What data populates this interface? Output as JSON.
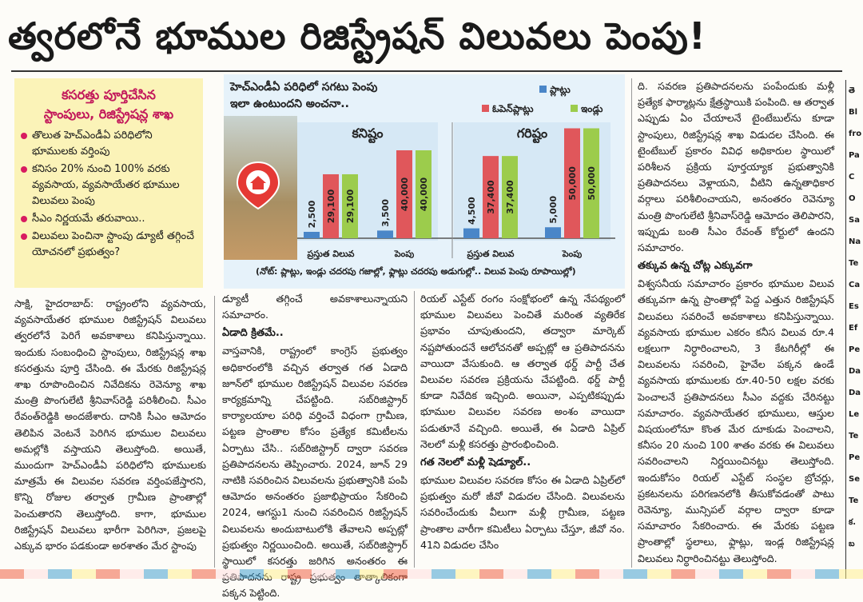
{
  "headline": "త్వరలోనే భూముల రిజిస్ట్రేషన్ విలువలు పెంపు!",
  "highlight": {
    "title1": "కసరత్తు పూర్తిచేసిన",
    "title2": "స్టాంపులు, రిజిస్ట్రేషన్ల శాఖ",
    "points": [
      "తొలుత హెచ్ఎండీఏ పరిధిలోని భూములకు వర్తింపు",
      "కనిసం 20% నుంచి 100% వరకు వ్యవసాయ, వ్యవసాయేతర భూముల విలువలు పెంపు",
      "సీఎం నిర్ణయమే తరువాయి..",
      "విలువలు పెంచినా స్టాంపు డ్యూటీ తగ్గించే యోచనలో ప్రభుత్వం?"
    ]
  },
  "chart_data": {
    "type": "bar",
    "title": "హెచ్ఎండీఏ పరిధిలో సగటు పెంపు ఇలా ఉంటుందని అంచనా..",
    "title_line1": "హెచ్ఎండీఏ పరిధిలో సగటు పెంపు",
    "title_line2": "ఇలా ఉంటుందని అంచనా..",
    "legend": [
      "ప్లాట్లు",
      "ఓపెన్‌ప్లాట్లు",
      "ఇండ్లు"
    ],
    "legend_placement": "top-right",
    "groups": [
      {
        "name": "కనిష్టం",
        "categories": [
          "ప్రస్తుత విలువ",
          "పెంపు"
        ]
      },
      {
        "name": "గరిష్టం",
        "categories": [
          "ప్రస్తుత విలువ",
          "పెంపు"
        ]
      }
    ],
    "categories": [
      "ప్రస్తుత విలువ",
      "పెంపు",
      "ప్రస్తుత విలువ",
      "పెంపు"
    ],
    "series": [
      {
        "name": "ప్లాట్లు",
        "values": [
          2500,
          3500,
          4500,
          5000
        ],
        "labels": [
          "2,500",
          "3,500",
          "4,500",
          "5,000"
        ],
        "color": "#4a86c8"
      },
      {
        "name": "ఓపెన్‌ప్లాట్లు",
        "values": [
          29100,
          40000,
          37400,
          50000
        ],
        "labels": [
          "29,100",
          "40,000",
          "37,400",
          "50,000"
        ],
        "color": "#e0575b"
      },
      {
        "name": "ఇండ్లు",
        "values": [
          29100,
          40000,
          37400,
          50000
        ],
        "labels": [
          "29,100",
          "40,000",
          "37,400",
          "50,000"
        ],
        "color": "#9ccc4c"
      }
    ],
    "ylim": [
      0,
      52000
    ],
    "note": "(నోట్: ప్లాట్లు, ఇండ్లు చదరపు గజాల్లో, ఫ్లాట్లు చదరపు అడుగుల్లో.. విలువ పెంపు రూపాయిల్లో)"
  },
  "columns": {
    "c1": "సాక్షి, హైదరాబాద్: రాష్ట్రంలోని వ్యవసాయ, వ్యవసాయేతర భూముల రిజిస్ట్రేషన్ విలువలు త్వరలోనే పెరిగే అవకాశాలు కనిపిస్తున్నాయి. ఇందుకు సంబంధించి స్టాంపులు, రిజిస్ట్రేషన్ల శాఖ కసరత్తును పూర్తి చేసింది. ఈ మేరకు రిజిస్ట్రేషన్ల శాఖ రూపొందించిన నివేదికను రెవెన్యూ శాఖ మంత్రి పొంగులేటి శ్రీనివాస్‌రెడ్డి పరిశీలించి. సీఎం రేవంత్‌రెడ్డికి అందజేశారు. దానికి సీఎం ఆమోదం తెలిపిన వెంటనే పెరిగిన భూముల విలువలు అమల్లోకి వస్తాయని తెలుస్తోంది. అయితే, ముందుగా హెచ్ఎండీఏ పరిధిలోని భూములకు మాత్రమే ఈ విలువల సవరణ వర్తింపజేస్తారని, కొన్ని రోజుల తర్వాత గ్రామీణ ప్రాంతాల్లో పెంచుతారని తెలుస్తోంది. కాగా, భూముల రిజిస్ట్రేషన్ విలువలు భారీగా పెరిగినా, ప్రజలపై ఎక్కువ భారం పడకుండా అరశాతం మేర స్టాంపు",
    "c2_a": "డ్యూటీ తగ్గించే అవకాశాలున్నాయని సమాచారం.",
    "c2_head": "ఏడాది క్రితమే..",
    "c2_b": "వాస్తవానికి, రాష్ట్రంలో కాంగ్రెస్ ప్రభుత్వం అధికారంలోకి వచ్చిన తర్వాత గత ఏడాది జూన్‌లో భూముల రిజిస్ట్రేషన్ విలువల సవరణ కార్యక్రమాన్ని చేపట్టింది. సబ్‌రిజిస్ట్రార్ కార్యాలయాల పరిధి వర్తించే విధంగా గ్రామీణ, పట్టణ ప్రాంతాల కోసం ప్రత్యేక కమిటీలను ఏర్పాటు చేసి.. సబ్‌రిజిస్ట్రార్ ద్వారా సవరణ ప్రతిపాదనలను తెప్పించారు. 2024, జూన్ 29 నాటికి సవరించిన విలువలను ప్రభుత్వానికి పంపి ఆమోదం అనంతరం ప్రజాభిప్రాయం సేకరించి 2024, ఆగస్టు1 నుంచి సవరించిన రిజిస్ట్రేషన్ విలువలను అందుబాటులోకి తేవాలని అప్పట్లో ప్రభుత్వం నిర్ణయించింది. అయితే, సబ్‌రిజిస్ట్రార్ స్థాయిలో కసరత్తు జరిగిన అనంతరం ఈ ప్రతిపాదనను రాష్ట్ర ప్రభుత్వం తాత్కాలికంగా పక్కన పెట్టింది.",
    "c3_a": "రియల్ ఎస్టేట్ రంగం సంక్షోభంలో ఉన్న నేపథ్యంలో భూముల విలువలు పెంచితే మరింత వ్యతిరేక ప్రభావం చూపుతుందని, తద్వారా మార్కెట్ నష్టపోతుందనే ఆలోచనతో అప్పట్లో ఆ ప్రతిపాదనను వాయిదా వేసుకుంది. ఆ తర్వాత థర్డ్ పార్టీ చేత విలువల సవరణ ప్రక్రియను చేపట్టింది. థర్డ్ పార్టీ కూడా నివేదిక ఇచ్చింది. అయినా, ఎప్పటికప్పుడు భూముల విలువల సవరణ అంశం వాయిదా పడుతూనే వచ్చింది. అయితే, ఈ ఏడాది ఏప్రిల్ నెలలో మళ్లీ కసరత్తు ప్రారంభించింది.",
    "c3_head": "గత నెలలో మళ్లీ షెడ్యూల్..",
    "c3_b": "భూముల విలువల సవరణ కోసం ఈ ఏడాది ఏప్రిల్‌లో ప్రభుత్వం మరో జీవో విడుదల చేసింది. విలువలను సవరించేందుకు వీలుగా మళ్లీ గ్రామీణ, పట్టణ ప్రాంతాల వారీగా కమిటీలు ఏర్పాటు చేస్తూ, జీవో నం. 41ని విడుదల చేసిం",
    "c4_a": "ది. సవరణ ప్రతిపాదనలను పంపేందుకు మళ్లీ ప్రత్యేక ఫార్మాట్లను క్షేత్రస్థాయికి పంపింది. ఆ తర్వాత ఎప్పుడు ఏం చేయాలనే టైంటేబుల్‌ను కూడా స్టాంపులు, రిజిస్ట్రేషన్ల శాఖ విడుదల చేసింది. ఈ టైంటేబుల్ ప్రకారం వివిధ అధికారుల స్థాయిలో పరిశీలన ప్రక్రియ పూర్తయ్యాక ప్రభుత్వానికి ప్రతిపాదనలు వెళ్లాయని, వీటిని ఉన్నతాధికార వర్గాలు పరిశీలించాయని, అనంతరం రెవెన్యూ మంత్రి పొంగులేటి శ్రీనివాస్‌రెడ్డి ఆమోదం తెలిపారని, ఇప్పుడు బంతి సీఎం రేవంత్ కోర్టులో ఉందని సమాచారం.",
    "c4_head": "తక్కువ ఉన్న చోట్ల ఎక్కువగా",
    "c4_b": "విశ్వసనీయ సమాచారం ప్రకారం భూముల విలువ తక్కువగా ఉన్న ప్రాంతాల్లో పెద్ద ఎత్తున రిజిస్ట్రేషన్ విలువలు సవరించే అవకాశాలు కనిపిస్తున్నాయి. వ్యవసాయ భూముల ఎకరం కనీస విలువ రూ.4 లక్షలుగా నిర్ధారించాలని, 3 కేటగిరీల్లో ఈ విలువలను సవరించి, హైవేల పక్కన ఉండే వ్యవసాయ భూములకు రూ.40-50 లక్షల వరకు పెంచాలనే ప్రతిపాదనలు సీఎం వద్దకు చేరినట్టు సమాచారం. వ్యవసాయేతర భూములు, ఆస్తుల విషయంలోనూ కొంత మేర దూకుడు పెంచాలని, కనీసం 20 నుంచి 100 శాతం వరకు ఈ విలువలు సవరించాలని నిర్ణయించినట్టు తెలుస్తోంది. ఇందుకోసం రియల్ ఎస్టేట్ సంస్థల బ్రోచర్లు, ప్రకటనలను పరిగణనలోకి తీసుకోవడంతో పాటు రెవెన్యూ, మున్సిపల్ వర్గాల ద్వారా కూడా సమాచారం సేకరించారు. ఈ మేరకు పట్టణ ప్రాంతాల్లో స్థలాలు, ఫ్లాట్లు, ఇండ్ల రిజిస్ట్రేషన్ల విలువలు నిర్ధారించినట్టు తెలుస్తోంది."
  },
  "sidebar_fragments": [
    "తె",
    "Bl",
    "fro",
    "Pa",
    "C",
    "O",
    "Sa",
    "Na",
    "Te",
    "Ca",
    "Es",
    "Ef",
    "Pe",
    "Da",
    "Da",
    "Le",
    "Te",
    "Pe",
    "Se",
    "Te",
    "క.",
    "బ"
  ]
}
